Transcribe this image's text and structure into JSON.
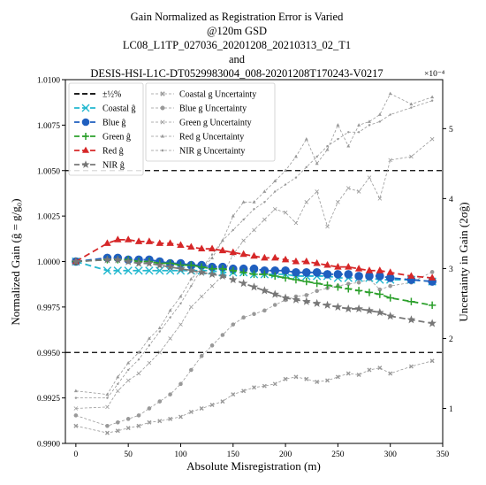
{
  "chart_data": {
    "type": "line",
    "title_lines": [
      "Gain Normalized as Registration Error is Varied",
      "@120m GSD",
      "LC08_L1TP_027036_20201208_20210313_02_T1",
      "and",
      "DESIS-HSI-L1C-DT0529983004_008-20201208T170243-V0217"
    ],
    "xlabel": "Absolute Misregistration (m)",
    "ylabel_left": "Normalized Gain (ĝ = g/g₀)",
    "ylabel_right": "Uncertainty in Gain (2σĝ)",
    "right_axis_multiplier": "×10⁻⁴",
    "xlim": [
      -10,
      350
    ],
    "ylim_left": [
      0.99,
      1.01
    ],
    "ylim_right": [
      0.5,
      5.7
    ],
    "x_ticks": [
      0,
      50,
      100,
      150,
      200,
      250,
      300,
      350
    ],
    "y_ticks_left": [
      0.99,
      0.9925,
      0.995,
      0.9975,
      1.0,
      1.0025,
      1.005,
      1.0075,
      1.01
    ],
    "y_ticks_left_labels": [
      "0.9900",
      "0.9925",
      "0.9950",
      "0.9975",
      "1.0000",
      "1.0025",
      "1.0050",
      "1.0075",
      "1.0100"
    ],
    "y_ticks_right": [
      1,
      2,
      3,
      4,
      5
    ],
    "reference_lines": [
      {
        "name": "±½%",
        "y": [
          1.005,
          0.995
        ],
        "color": "#000000",
        "style": "dashed"
      }
    ],
    "series": [
      {
        "name": "Coastal ĝ",
        "axis": "left",
        "color": "#22b8cf",
        "marker": "x",
        "x": [
          0,
          30,
          40,
          50,
          60,
          70,
          80,
          90,
          100,
          110,
          120,
          130,
          140,
          150,
          160,
          170,
          180,
          190,
          200,
          210,
          220,
          230,
          240,
          250,
          260,
          270,
          280,
          290,
          300,
          320,
          340
        ],
        "y": [
          1.0,
          0.9995,
          0.9995,
          0.9995,
          0.9995,
          0.9995,
          0.9995,
          0.9995,
          0.9995,
          0.9995,
          0.9995,
          0.9995,
          0.9994,
          0.9994,
          0.9994,
          0.9993,
          0.9993,
          0.9993,
          0.9993,
          0.9992,
          0.9992,
          0.9992,
          0.9992,
          0.9991,
          0.9991,
          0.9991,
          0.9991,
          0.999,
          0.999,
          0.999,
          0.9989
        ]
      },
      {
        "name": "Blue ĝ",
        "axis": "left",
        "color": "#1f5fbf",
        "marker": "circle",
        "x": [
          0,
          30,
          40,
          50,
          60,
          70,
          80,
          90,
          100,
          110,
          120,
          130,
          140,
          150,
          160,
          170,
          180,
          190,
          200,
          210,
          220,
          230,
          240,
          250,
          260,
          270,
          280,
          290,
          300,
          320,
          340
        ],
        "y": [
          1.0,
          1.0002,
          1.0002,
          1.0001,
          1.0001,
          1.0001,
          1.0,
          0.9999,
          0.9999,
          0.9998,
          0.9998,
          0.9997,
          0.9997,
          0.9996,
          0.9996,
          0.9996,
          0.9995,
          0.9995,
          0.9995,
          0.9994,
          0.9994,
          0.9994,
          0.9993,
          0.9993,
          0.9993,
          0.9992,
          0.9992,
          0.9992,
          0.9991,
          0.999,
          0.9989
        ]
      },
      {
        "name": "Green ĝ",
        "axis": "left",
        "color": "#2ca02c",
        "marker": "plus",
        "x": [
          0,
          30,
          40,
          50,
          60,
          70,
          80,
          90,
          100,
          110,
          120,
          130,
          140,
          150,
          160,
          170,
          180,
          190,
          200,
          210,
          220,
          230,
          240,
          250,
          260,
          270,
          280,
          290,
          300,
          320,
          340
        ],
        "y": [
          1.0,
          1.0001,
          1.0001,
          1.0001,
          1.0,
          1.0,
          0.9999,
          0.9999,
          0.9998,
          0.9998,
          0.9997,
          0.9996,
          0.9996,
          0.9995,
          0.9994,
          0.9993,
          0.9993,
          0.9992,
          0.9991,
          0.999,
          0.9989,
          0.9988,
          0.9987,
          0.9986,
          0.9985,
          0.9984,
          0.9983,
          0.9982,
          0.998,
          0.9978,
          0.9976
        ]
      },
      {
        "name": "Red ĝ",
        "axis": "left",
        "color": "#d62728",
        "marker": "triangle",
        "x": [
          0,
          30,
          40,
          50,
          60,
          70,
          80,
          90,
          100,
          110,
          120,
          130,
          140,
          150,
          160,
          170,
          180,
          190,
          200,
          210,
          220,
          230,
          240,
          250,
          260,
          270,
          280,
          290,
          300,
          320,
          340
        ],
        "y": [
          1.0,
          1.001,
          1.0012,
          1.0012,
          1.0011,
          1.0011,
          1.001,
          1.001,
          1.0009,
          1.0008,
          1.0007,
          1.0007,
          1.0006,
          1.0005,
          1.0004,
          1.0003,
          1.0002,
          1.0002,
          1.0001,
          1.0,
          1.0,
          0.9999,
          0.9998,
          0.9997,
          0.9997,
          0.9996,
          0.9995,
          0.9995,
          0.9994,
          0.9992,
          0.9991
        ]
      },
      {
        "name": "NIR ĝ",
        "axis": "left",
        "color": "#777777",
        "marker": "star",
        "x": [
          0,
          30,
          40,
          50,
          60,
          70,
          80,
          90,
          100,
          110,
          120,
          130,
          140,
          150,
          160,
          170,
          180,
          190,
          200,
          210,
          220,
          230,
          240,
          250,
          260,
          270,
          280,
          290,
          300,
          320,
          340
        ],
        "y": [
          1.0,
          1.0001,
          1.0001,
          1.0,
          0.9999,
          0.9999,
          0.9998,
          0.9997,
          0.9996,
          0.9995,
          0.9994,
          0.9993,
          0.9992,
          0.999,
          0.9988,
          0.9986,
          0.9984,
          0.9982,
          0.998,
          0.9979,
          0.9978,
          0.9977,
          0.9976,
          0.9975,
          0.9974,
          0.9974,
          0.9973,
          0.9972,
          0.997,
          0.9968,
          0.9966
        ]
      },
      {
        "name": "Coastal g Uncertainty",
        "axis": "right",
        "color": "#999999",
        "marker": "x",
        "x": [
          0,
          30,
          40,
          50,
          60,
          70,
          80,
          90,
          100,
          110,
          120,
          130,
          140,
          150,
          160,
          170,
          180,
          190,
          200,
          210,
          220,
          230,
          240,
          250,
          260,
          270,
          280,
          290,
          300,
          320,
          340
        ],
        "y": [
          0.75,
          0.65,
          0.68,
          0.72,
          0.75,
          0.8,
          0.82,
          0.85,
          0.88,
          0.95,
          1.0,
          1.05,
          1.1,
          1.2,
          1.25,
          1.3,
          1.32,
          1.35,
          1.42,
          1.45,
          1.42,
          1.38,
          1.4,
          1.45,
          1.5,
          1.48,
          1.55,
          1.58,
          1.5,
          1.6,
          1.68
        ]
      },
      {
        "name": "Blue g Uncertainty",
        "axis": "right",
        "color": "#999999",
        "marker": "circle",
        "x": [
          0,
          30,
          40,
          50,
          60,
          70,
          80,
          90,
          100,
          110,
          120,
          130,
          140,
          150,
          160,
          170,
          180,
          190,
          200,
          210,
          220,
          230,
          240,
          250,
          260,
          270,
          280,
          290,
          300,
          320,
          340
        ],
        "y": [
          0.9,
          0.75,
          0.8,
          0.85,
          0.9,
          1.0,
          1.1,
          1.2,
          1.35,
          1.55,
          1.75,
          1.9,
          2.05,
          2.2,
          2.3,
          2.35,
          2.4,
          2.48,
          2.55,
          2.6,
          2.62,
          2.68,
          2.72,
          2.75,
          2.78,
          2.8,
          2.85,
          2.7,
          2.75,
          2.8,
          2.95
        ]
      },
      {
        "name": "Green g Uncertainty",
        "axis": "right",
        "color": "#999999",
        "marker": "thin-x",
        "x": [
          0,
          30,
          40,
          50,
          60,
          70,
          80,
          90,
          100,
          110,
          120,
          130,
          140,
          150,
          160,
          170,
          180,
          190,
          200,
          210,
          220,
          230,
          240,
          250,
          260,
          270,
          280,
          290,
          300,
          320,
          340
        ],
        "y": [
          1.0,
          1.02,
          1.25,
          1.4,
          1.5,
          1.65,
          1.8,
          2.0,
          2.2,
          2.45,
          2.6,
          2.75,
          2.9,
          3.2,
          3.4,
          3.55,
          3.7,
          3.85,
          3.8,
          3.65,
          3.95,
          4.1,
          3.6,
          3.95,
          4.15,
          4.1,
          4.3,
          4.0,
          4.55,
          4.6,
          4.85
        ]
      },
      {
        "name": "Red g Uncertainty",
        "axis": "right",
        "color": "#999999",
        "marker": "triangle",
        "x": [
          0,
          30,
          40,
          50,
          60,
          70,
          80,
          90,
          100,
          110,
          120,
          130,
          140,
          150,
          160,
          170,
          180,
          190,
          200,
          210,
          220,
          230,
          240,
          250,
          260,
          270,
          280,
          290,
          300,
          320,
          340
        ],
        "y": [
          1.25,
          1.2,
          1.45,
          1.65,
          1.8,
          2.0,
          2.15,
          2.4,
          2.6,
          2.85,
          3.0,
          3.15,
          3.4,
          3.75,
          3.95,
          3.95,
          4.1,
          4.25,
          4.4,
          4.6,
          4.85,
          4.5,
          4.7,
          5.05,
          4.75,
          5.05,
          5.1,
          5.2,
          5.5,
          5.35,
          5.45
        ]
      },
      {
        "name": "NIR g Uncertainty",
        "axis": "right",
        "color": "#999999",
        "marker": "dot",
        "x": [
          0,
          30,
          40,
          50,
          60,
          70,
          80,
          90,
          100,
          110,
          120,
          130,
          140,
          150,
          160,
          170,
          180,
          190,
          200,
          210,
          220,
          230,
          240,
          250,
          260,
          270,
          280,
          290,
          300,
          320,
          340
        ],
        "y": [
          1.15,
          1.15,
          1.35,
          1.55,
          1.7,
          1.9,
          2.1,
          2.3,
          2.5,
          2.75,
          3.0,
          3.2,
          3.4,
          3.55,
          3.7,
          3.85,
          3.95,
          4.1,
          4.2,
          4.3,
          4.45,
          4.6,
          4.75,
          4.85,
          4.95,
          4.95,
          5.05,
          5.1,
          5.2,
          5.3,
          5.4
        ]
      }
    ],
    "legend_left_placement": "upper-left",
    "legend_right_placement": "upper-center"
  }
}
